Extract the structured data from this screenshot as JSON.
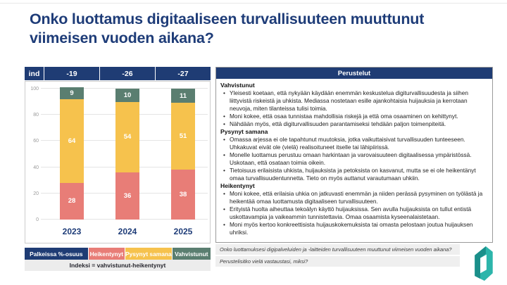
{
  "slide": {
    "title": "Onko luottamus digitaaliseen turvallisuuteen muuttunut viimeisen vuoden aikana?"
  },
  "chart_data": {
    "type": "bar",
    "stacked": true,
    "categories": [
      "2023",
      "2024",
      "2025"
    ],
    "series": [
      {
        "name": "Heikentynyt",
        "color": "#E87D77",
        "values": [
          28,
          36,
          38
        ]
      },
      {
        "name": "Pysynyt samana",
        "color": "#F6C24D",
        "values": [
          64,
          54,
          51
        ]
      },
      {
        "name": "Vahvistunut",
        "color": "#5A7E70",
        "values": [
          9,
          10,
          11
        ]
      }
    ],
    "index_row": {
      "label": "ind",
      "values": [
        "-19",
        "-26",
        "-27"
      ]
    },
    "ylim": [
      0,
      100
    ],
    "yticks": [
      0,
      20,
      40,
      60,
      80,
      100
    ],
    "grid": true,
    "legend_position": "bottom",
    "legend_note": {
      "label": "Palkeissa %-osuus",
      "color": "#1F3C74"
    },
    "footnote": "Indeksi = vahvistunut-heikentynyt"
  },
  "perustelut": {
    "header": "Perustelut",
    "sections": [
      {
        "title": "Vahvistunut",
        "bullets": [
          "Yleisesti koetaan, että nykyään käydään enemmän keskustelua digiturvallisuudesta ja siihen liittyvistä riskeistä ja uhkista. Mediassa nostetaan esille ajankohtaisia huijauksia ja kerrotaan neuvoja, miten tilanteissa tulisi toimia.",
          "Moni kokee, että osaa tunnistaa mahdollisia riskejä ja että oma osaaminen on kehittynyt.",
          "Nähdään myös, että digiturvallisuuden parantamiseksi tehdään paljon toimenpiteitä."
        ]
      },
      {
        "title": "Pysynyt samana",
        "bullets": [
          "Omassa arjessa ei ole tapahtunut muutoksia, jotka vaikuttaisivat turvallisuuden tunteeseen. Uhkakuvat eivät ole (vielä) realisoituneet itselle tai lähipiirissä.",
          "Monelle luottamus perustuu omaan harkintaan ja varovaisuuteen digitaalisessa ympäristössä. Uskotaan, että osataan toimia oikein.",
          "Tietoisuus erilaisista uhkista, huijauksista ja petoksista on kasvanut, mutta se ei ole heikentänyt omaa turvallisuudentunnetta. Tieto on myös auttanut varautumaan uhkiin."
        ]
      },
      {
        "title": "Heikentynyt",
        "bullets": [
          "Moni kokee, että erilaisia uhkia on jatkuvasti enemmän ja niiden perässä pysyminen on työlästä ja heikentää omaa luottamusta digitaaliseen turvallisuuteen.",
          "Erityistä huolta aiheuttaa tekoälyn käyttö huijauksissa. Sen avulla huijauksista on tullut entistä uskottavampia ja vaikeammin tunnistettavia. Omaa osaamista kyseenalaistetaan.",
          "Moni myös kertoo konkreettisista huijauskokemuksista tai omasta pelostaan joutua huijauksen uhriksi."
        ]
      }
    ]
  },
  "footer": {
    "question1": "Onko luottamuksesi digipalveluiden ja -laitteiden turvallisuuteen muuttunut viimeisen vuoden aikana?",
    "question2": "Perustelisitko vielä vastaustasi, miksi?"
  },
  "colors": {
    "navy": "#1F3C74",
    "salmon": "#E87D77",
    "yellow": "#F6C24D",
    "teal_green": "#5A7E70",
    "logo_teal": "#2CB5AB",
    "logo_teal_dark": "#1B8F8A",
    "band_gray": "#ECECEC"
  }
}
